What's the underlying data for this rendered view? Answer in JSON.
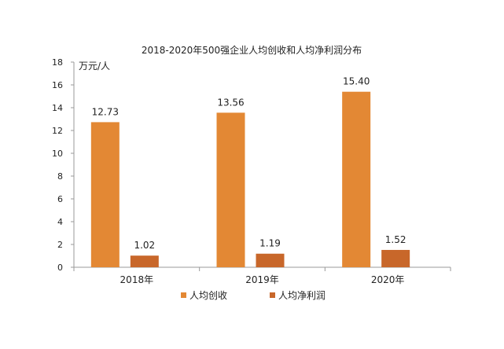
{
  "chart_data": {
    "type": "bar",
    "title": "2018-2020年500强企业人均创收和人均净利润分布",
    "unit_label": "万元/人",
    "categories": [
      "2018年",
      "2019年",
      "2020年"
    ],
    "ylim": [
      0,
      18
    ],
    "yticks": [
      0,
      2,
      4,
      6,
      8,
      10,
      12,
      14,
      16,
      18
    ],
    "grid": false,
    "legend_position": "bottom",
    "series": [
      {
        "name": "人均创收",
        "values": [
          12.73,
          13.56,
          15.4
        ],
        "labels": [
          "12.73",
          "13.56",
          "15.40"
        ],
        "color": "#E38834"
      },
      {
        "name": "人均净利润",
        "values": [
          1.02,
          1.19,
          1.52
        ],
        "labels": [
          "1.02",
          "1.19",
          "1.52"
        ],
        "color": "#C8672A"
      }
    ]
  }
}
